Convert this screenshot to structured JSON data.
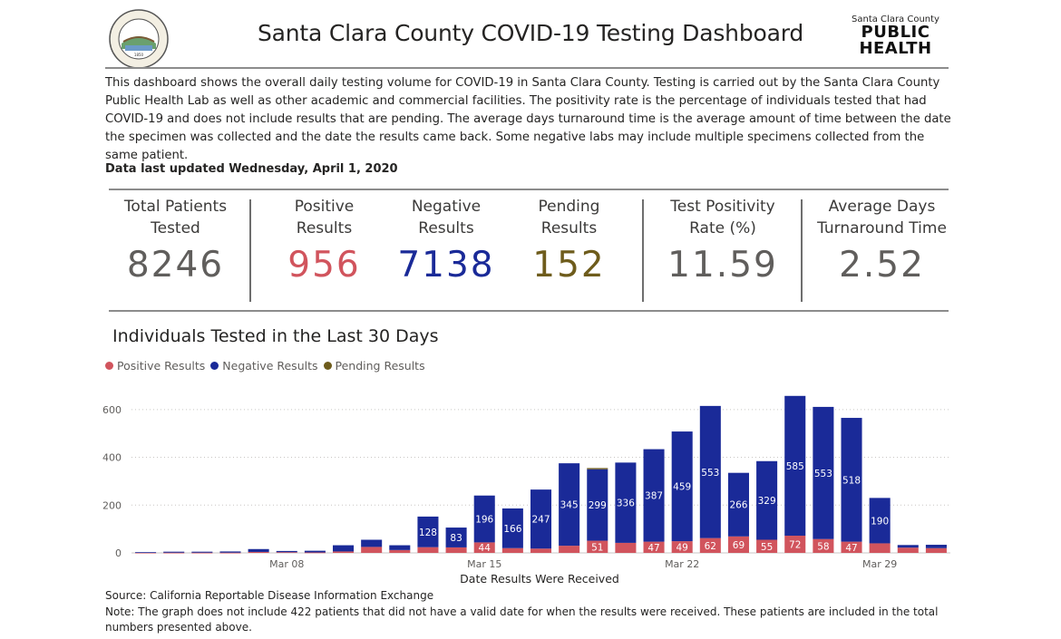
{
  "header": {
    "title": "Santa Clara County COVID-19 Testing Dashboard",
    "seal_text": "THE COUNTY OF SANTA CLARA",
    "logo_small": "Santa Clara County",
    "logo_line1": "PUBLIC",
    "logo_line2": "HEALTH"
  },
  "description": "This dashboard shows the overall daily testing volume for COVID-19 in Santa Clara County. Testing is carried out by the Santa Clara County Public Health Lab as well as other academic and commercial facilities. The positivity rate is the percentage of individuals tested that had COVID-19 and does not include results that are pending. The average days turnaround time is the average amount of time between the date the specimen was collected and the date the results came back. Some negative labs may include multiple specimens collected from the same patient.",
  "last_updated": "Data last updated Wednesday, April 1, 2020",
  "kpis": {
    "total": {
      "label1": "Total Patients",
      "label2": "Tested",
      "value": "8246"
    },
    "positive": {
      "label1": "Positive",
      "label2": "Results",
      "value": "956"
    },
    "negative": {
      "label1": "Negative",
      "label2": "Results",
      "value": "7138"
    },
    "pending": {
      "label1": "Pending",
      "label2": "Results",
      "value": "152"
    },
    "positivity": {
      "label1": "Test Positivity",
      "label2": "Rate (%)",
      "value": "11.59"
    },
    "turnaround": {
      "label1": "Average Days",
      "label2": "Turnaround Time",
      "value": "2.52"
    }
  },
  "colors": {
    "positive": "#d1545d",
    "negative": "#1a2a98",
    "pending": "#6e5c1c",
    "kpi_gray": "#605e5c",
    "gridline": "#c8c6c4"
  },
  "chart_title": "Individuals Tested in the Last 30 Days",
  "legend": [
    "Positive Results",
    "Negative Results",
    "Pending Results"
  ],
  "chart_data": {
    "type": "bar",
    "stacked": true,
    "x": [
      "Mar 03",
      "Mar 04",
      "Mar 05",
      "Mar 06",
      "Mar 07",
      "Mar 08",
      "Mar 09",
      "Mar 10",
      "Mar 11",
      "Mar 12",
      "Mar 13",
      "Mar 14",
      "Mar 15",
      "Mar 16",
      "Mar 17",
      "Mar 18",
      "Mar 19",
      "Mar 20",
      "Mar 21",
      "Mar 22",
      "Mar 23",
      "Mar 24",
      "Mar 25",
      "Mar 26",
      "Mar 27",
      "Mar 28",
      "Mar 29",
      "Mar 30",
      "Mar 31"
    ],
    "x_tick_labels": [
      "Mar 08",
      "Mar 15",
      "Mar 22",
      "Mar 29"
    ],
    "series": [
      {
        "name": "Positive Results",
        "values": [
          1,
          1,
          1,
          1,
          4,
          3,
          2,
          6,
          25,
          12,
          24,
          23,
          44,
          20,
          18,
          30,
          51,
          42,
          47,
          49,
          62,
          69,
          55,
          72,
          58,
          47,
          40,
          22,
          20
        ],
        "labels": [
          null,
          null,
          null,
          null,
          null,
          null,
          null,
          null,
          null,
          null,
          null,
          null,
          "44",
          null,
          null,
          null,
          "51",
          null,
          "47",
          "49",
          "62",
          "69",
          "55",
          "72",
          "58",
          "47",
          null,
          null,
          null
        ]
      },
      {
        "name": "Negative Results",
        "values": [
          2,
          4,
          4,
          5,
          12,
          5,
          7,
          26,
          30,
          20,
          128,
          83,
          196,
          166,
          247,
          345,
          299,
          336,
          387,
          459,
          553,
          266,
          329,
          585,
          553,
          518,
          190,
          11,
          14
        ],
        "labels": [
          null,
          null,
          null,
          null,
          null,
          null,
          null,
          null,
          null,
          null,
          "128",
          "83",
          "196",
          "166",
          "247",
          "345",
          "299",
          "336",
          "387",
          "459",
          "553",
          "266",
          "329",
          "585",
          "553",
          "518",
          "190",
          null,
          null
        ]
      },
      {
        "name": "Pending Results",
        "values": [
          0,
          0,
          0,
          0,
          0,
          0,
          0,
          0,
          0,
          0,
          0,
          0,
          0,
          0,
          0,
          0,
          5,
          0,
          0,
          0,
          0,
          0,
          0,
          0,
          0,
          0,
          0,
          0,
          0
        ]
      }
    ],
    "xlabel": "Date Results Were Received",
    "ylabel": "",
    "ylim": [
      0,
      660
    ],
    "yticks": [
      0,
      200,
      400,
      600
    ],
    "grid": true,
    "legend_position": "top-left"
  },
  "source": "Source: California Reportable Disease Information Exchange",
  "note": "Note: The graph does not include 422 patients that did not have a valid date for when the results were received. These patients are included in the total numbers presented above."
}
